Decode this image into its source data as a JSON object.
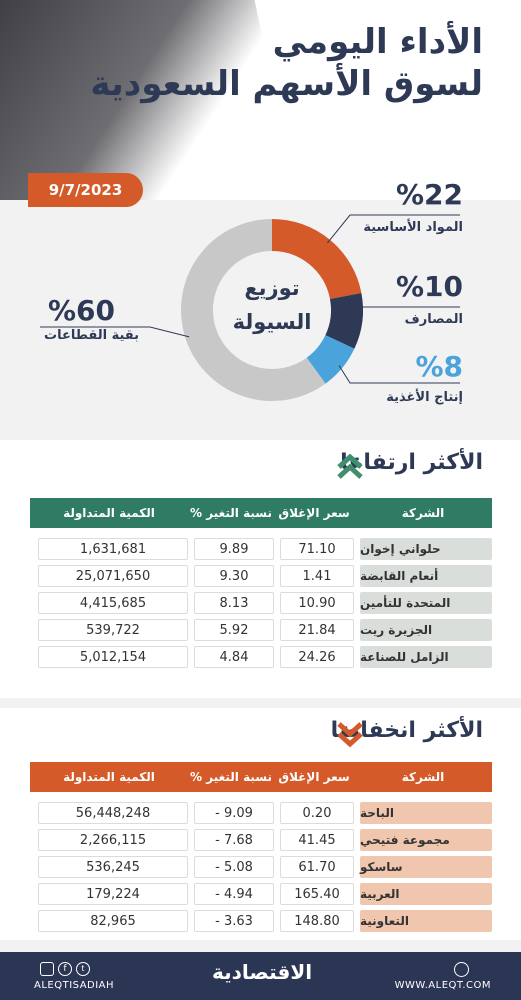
{
  "header": {
    "title_line1": "الأداء اليومي",
    "title_line2": "لسوق الأسهم السعودية",
    "date": "9/7/2023"
  },
  "distribution": {
    "center_line1": "توزيع",
    "center_line2": "السيولة",
    "segments": [
      {
        "pct": "%22",
        "label": "المواد الأساسية",
        "value": 22,
        "color": "#d55a29"
      },
      {
        "pct": "%10",
        "label": "المصارف",
        "value": 10,
        "color": "#2e3a55"
      },
      {
        "pct": "%8",
        "label": "إنتاج الأغذية",
        "value": 8,
        "color": "#4aa3db"
      },
      {
        "pct": "%60",
        "label": "بقية القطاعات",
        "value": 60,
        "color": "#c8c8c9"
      }
    ]
  },
  "chart_data": {
    "type": "pie",
    "title": "توزيع السيولة",
    "categories": [
      "المواد الأساسية",
      "المصارف",
      "إنتاج الأغذية",
      "بقية القطاعات"
    ],
    "values": [
      22,
      10,
      8,
      60
    ]
  },
  "gainers": {
    "title": "الأكثر ارتفاعا",
    "headers": {
      "company": "الشركة",
      "close": "سعر الإغلاق",
      "change": "نسبة التغير %",
      "volume": "الكمية المتداولة"
    },
    "rows": [
      {
        "company": "حلواني إخوان",
        "close": "71.10",
        "change": "9.89",
        "volume": "1,631,681"
      },
      {
        "company": "أنعام القابضة",
        "close": "1.41",
        "change": "9.30",
        "volume": "25,071,650"
      },
      {
        "company": "المتحدة للتأمين",
        "close": "10.90",
        "change": "8.13",
        "volume": "4,415,685"
      },
      {
        "company": "الجزيرة ريت",
        "close": "21.84",
        "change": "5.92",
        "volume": "539,722"
      },
      {
        "company": "الزامل للصناعة",
        "close": "24.26",
        "change": "4.84",
        "volume": "5,012,154"
      }
    ]
  },
  "losers": {
    "title": "الأكثر انخفاضا",
    "headers": {
      "company": "الشركة",
      "close": "سعر الإغلاق",
      "change": "نسبة التغير %",
      "volume": "الكمية المتداولة"
    },
    "rows": [
      {
        "company": "الباحة",
        "close": "0.20",
        "change": "9.09 -",
        "volume": "56,448,248"
      },
      {
        "company": "مجموعة فتيحي",
        "close": "41.45",
        "change": "7.68 -",
        "volume": "2,266,115"
      },
      {
        "company": "ساسكو",
        "close": "61.70",
        "change": "5.08 -",
        "volume": "536,245"
      },
      {
        "company": "العربية",
        "close": "165.40",
        "change": "4.94 -",
        "volume": "179,224"
      },
      {
        "company": "التعاونية",
        "close": "148.80",
        "change": "3.63 -",
        "volume": "82,965"
      }
    ]
  },
  "footer": {
    "handle": "ALEQTISADIAH",
    "logo": "الاقتصادية",
    "website": "WWW.ALEQT.COM"
  }
}
